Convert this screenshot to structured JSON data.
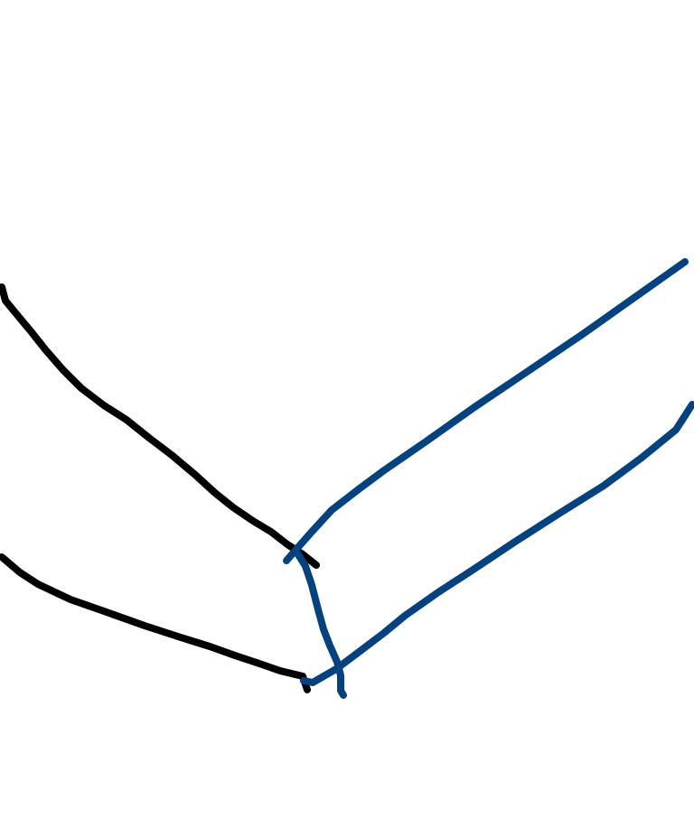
{
  "canvas": {
    "background": "#ffffff",
    "stroke_colors": {
      "black": "#000000",
      "blue": "#03427f"
    }
  }
}
